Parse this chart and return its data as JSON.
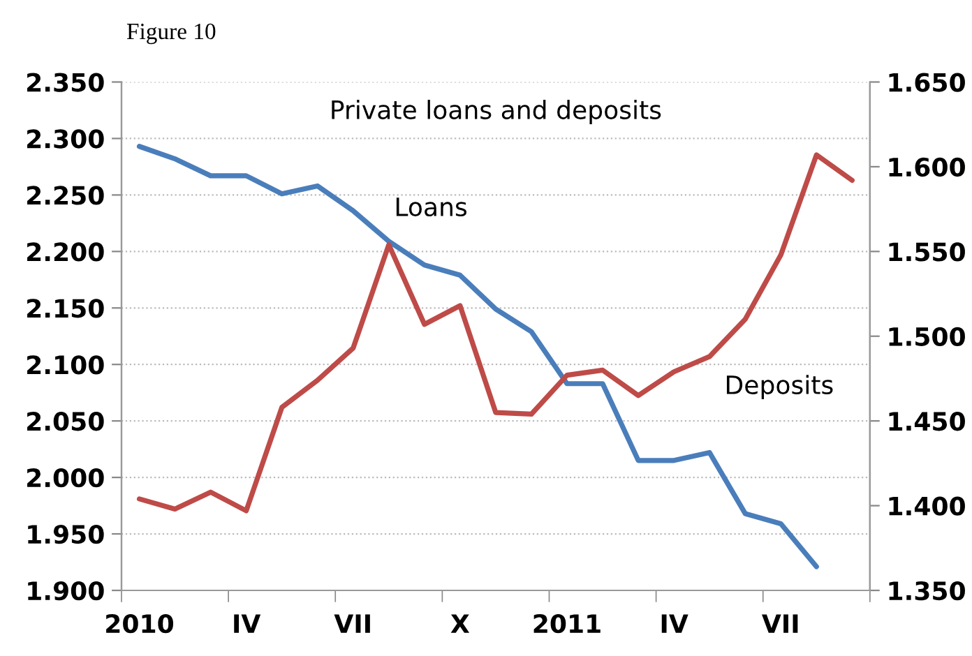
{
  "chart_data": {
    "type": "line",
    "title": "Private loans and deposits",
    "annotations": [
      "Figure 10"
    ],
    "categories": [
      "2010",
      null,
      null,
      "IV",
      null,
      null,
      "VII",
      null,
      null,
      "X",
      null,
      null,
      "2011",
      null,
      null,
      "IV",
      null,
      null,
      "VII",
      null,
      null
    ],
    "series": [
      {
        "name": "Loans",
        "color": "#4a7ebb",
        "values": [
          2.293,
          2.282,
          2.267,
          2.267,
          2.251,
          2.258,
          2.236,
          2.209,
          2.188,
          2.179,
          2.149,
          2.129,
          2.083,
          2.083,
          2.015,
          2.015,
          2.022,
          1.968,
          1.959,
          1.921,
          null
        ]
      },
      {
        "name": "Deposits",
        "color": "#be4b48",
        "axis": "y2",
        "values": [
          1.404,
          1.398,
          1.408,
          1.397,
          1.458,
          1.474,
          1.493,
          1.554,
          1.507,
          1.518,
          1.455,
          1.454,
          1.477,
          1.48,
          1.465,
          1.479,
          1.488,
          1.51,
          1.548,
          1.607,
          1.592
        ]
      }
    ],
    "ylim": [
      1.9,
      2.35
    ],
    "yticks": [
      {
        "value": 1.9,
        "label": "1.900"
      },
      {
        "value": 1.95,
        "label": "1.950"
      },
      {
        "value": 2.0,
        "label": "2.000"
      },
      {
        "value": 2.05,
        "label": "2.050"
      },
      {
        "value": 2.1,
        "label": "2.100"
      },
      {
        "value": 2.15,
        "label": "2.150"
      },
      {
        "value": 2.2,
        "label": "2.200"
      },
      {
        "value": 2.25,
        "label": "2.250"
      },
      {
        "value": 2.3,
        "label": "2.300"
      },
      {
        "value": 2.35,
        "label": "2.350"
      }
    ],
    "y2lim": [
      1.35,
      1.65
    ],
    "y2ticks": [
      {
        "value": 1.35,
        "label": "1.350"
      },
      {
        "value": 1.4,
        "label": "1.400"
      },
      {
        "value": 1.45,
        "label": "1.450"
      },
      {
        "value": 1.5,
        "label": "1.500"
      },
      {
        "value": 1.55,
        "label": "1.550"
      },
      {
        "value": 1.6,
        "label": "1.600"
      },
      {
        "value": 1.65,
        "label": "1.650"
      }
    ],
    "grid": "y",
    "legend": false,
    "line_style": "solid",
    "marker": "none"
  }
}
